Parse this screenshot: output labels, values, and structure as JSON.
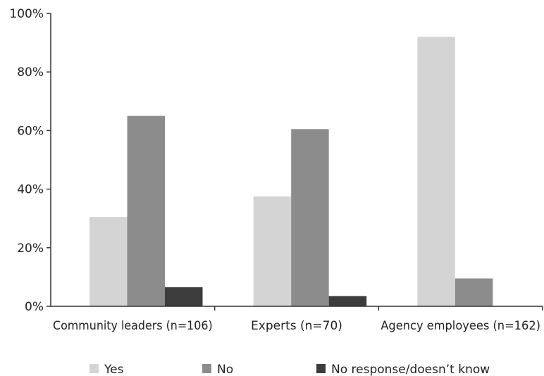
{
  "chart_data": {
    "type": "bar",
    "title": "",
    "xlabel": "",
    "ylabel": "",
    "ylim": [
      0,
      100
    ],
    "yticks": [
      "0%",
      "20%",
      "40%",
      "60%",
      "80%",
      "100%"
    ],
    "categories": [
      "Community leaders (n=106)",
      "Experts (n=70)",
      "Agency employees (n=162)"
    ],
    "series": [
      {
        "name": "Yes",
        "values": [
          30.5,
          37.5,
          92
        ],
        "color": "#d4d4d4"
      },
      {
        "name": "No",
        "values": [
          65,
          60.5,
          9.5
        ],
        "color": "#8c8c8c"
      },
      {
        "name": "No response/doesn’t know",
        "values": [
          6.5,
          3.5,
          0
        ],
        "color": "#3c3c3c"
      }
    ],
    "grid": false,
    "legend_position": "bottom"
  }
}
